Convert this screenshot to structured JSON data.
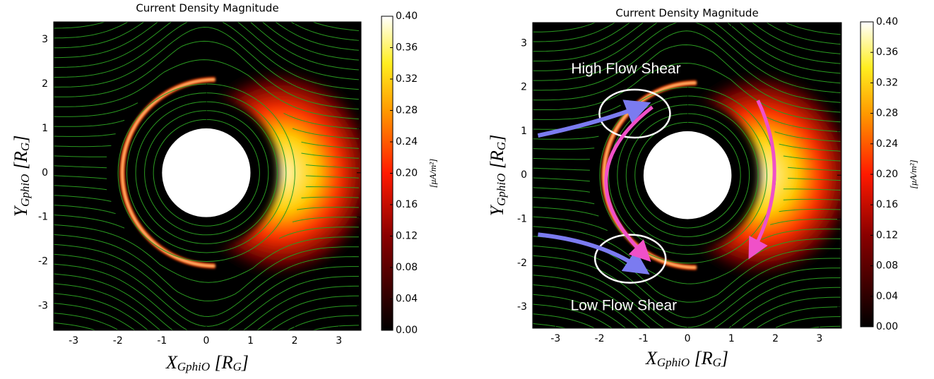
{
  "chart_data": [
    {
      "type": "heatmap",
      "title": "Current Density Magnitude",
      "xlabel_parts": [
        {
          "text": "X"
        },
        {
          "text": "GphiO",
          "sub": true
        },
        {
          "text": " [R"
        },
        {
          "text": "G",
          "sub": true
        },
        {
          "text": "]"
        }
      ],
      "ylabel_parts": [
        {
          "text": "Y"
        },
        {
          "text": "GphiO",
          "sub": true
        },
        {
          "text": " [R"
        },
        {
          "text": "G",
          "sub": true
        },
        {
          "text": "]"
        }
      ],
      "xlim": [
        -3.45,
        3.5
      ],
      "ylim": [
        -3.55,
        3.4
      ],
      "xticks": [
        -3,
        -2,
        -1,
        0,
        1,
        2,
        3
      ],
      "yticks": [
        -3,
        -2,
        -1,
        0,
        1,
        2,
        3
      ],
      "colorbar": {
        "label": "[μA/m²]",
        "clim": [
          0,
          0.4
        ],
        "ticks": [
          {
            "value": 0,
            "label": "0.00"
          },
          {
            "value": 0.04,
            "label": "0.04"
          },
          {
            "value": 0.08,
            "label": "0.08"
          },
          {
            "value": 0.12,
            "label": "0.12"
          },
          {
            "value": 0.16,
            "label": "0.16"
          },
          {
            "value": 0.2,
            "label": "0.20"
          },
          {
            "value": 0.24,
            "label": "0.24"
          },
          {
            "value": 0.28,
            "label": "0.28"
          },
          {
            "value": 0.32,
            "label": "0.32"
          },
          {
            "value": 0.36,
            "label": "0.36"
          },
          {
            "value": 0.4,
            "label": "0.40"
          }
        ]
      }
    },
    {
      "type": "heatmap",
      "title": "Current Density Magnitude",
      "xlabel_parts": [
        {
          "text": "X"
        },
        {
          "text": "GphiO",
          "sub": true
        },
        {
          "text": " [R"
        },
        {
          "text": "G",
          "sub": true
        },
        {
          "text": "]"
        }
      ],
      "ylabel_parts": [
        {
          "text": "Y"
        },
        {
          "text": "GphiO",
          "sub": true
        },
        {
          "text": " [R"
        },
        {
          "text": "G",
          "sub": true
        },
        {
          "text": "]"
        }
      ],
      "xlim": [
        -3.52,
        3.5
      ],
      "ylim": [
        -3.48,
        3.47
      ],
      "xticks": [
        -3,
        -2,
        -1,
        0,
        1,
        2,
        3
      ],
      "yticks": [
        -3,
        -2,
        -1,
        0,
        1,
        2,
        3
      ],
      "annotations": [
        "High Flow Shear",
        "Low Flow Shear"
      ],
      "colorbar": {
        "label": "[μA/m²]",
        "clim": [
          0,
          0.4
        ],
        "ticks": [
          {
            "value": 0,
            "label": "0.00"
          },
          {
            "value": 0.04,
            "label": "0.04"
          },
          {
            "value": 0.08,
            "label": "0.08"
          },
          {
            "value": 0.12,
            "label": "0.12"
          },
          {
            "value": 0.16,
            "label": "0.16"
          },
          {
            "value": 0.2,
            "label": "0.20"
          },
          {
            "value": 0.24,
            "label": "0.24"
          },
          {
            "value": 0.28,
            "label": "0.28"
          },
          {
            "value": 0.32,
            "label": "0.32"
          },
          {
            "value": 0.36,
            "label": "0.36"
          },
          {
            "value": 0.4,
            "label": "0.40"
          }
        ]
      }
    }
  ]
}
